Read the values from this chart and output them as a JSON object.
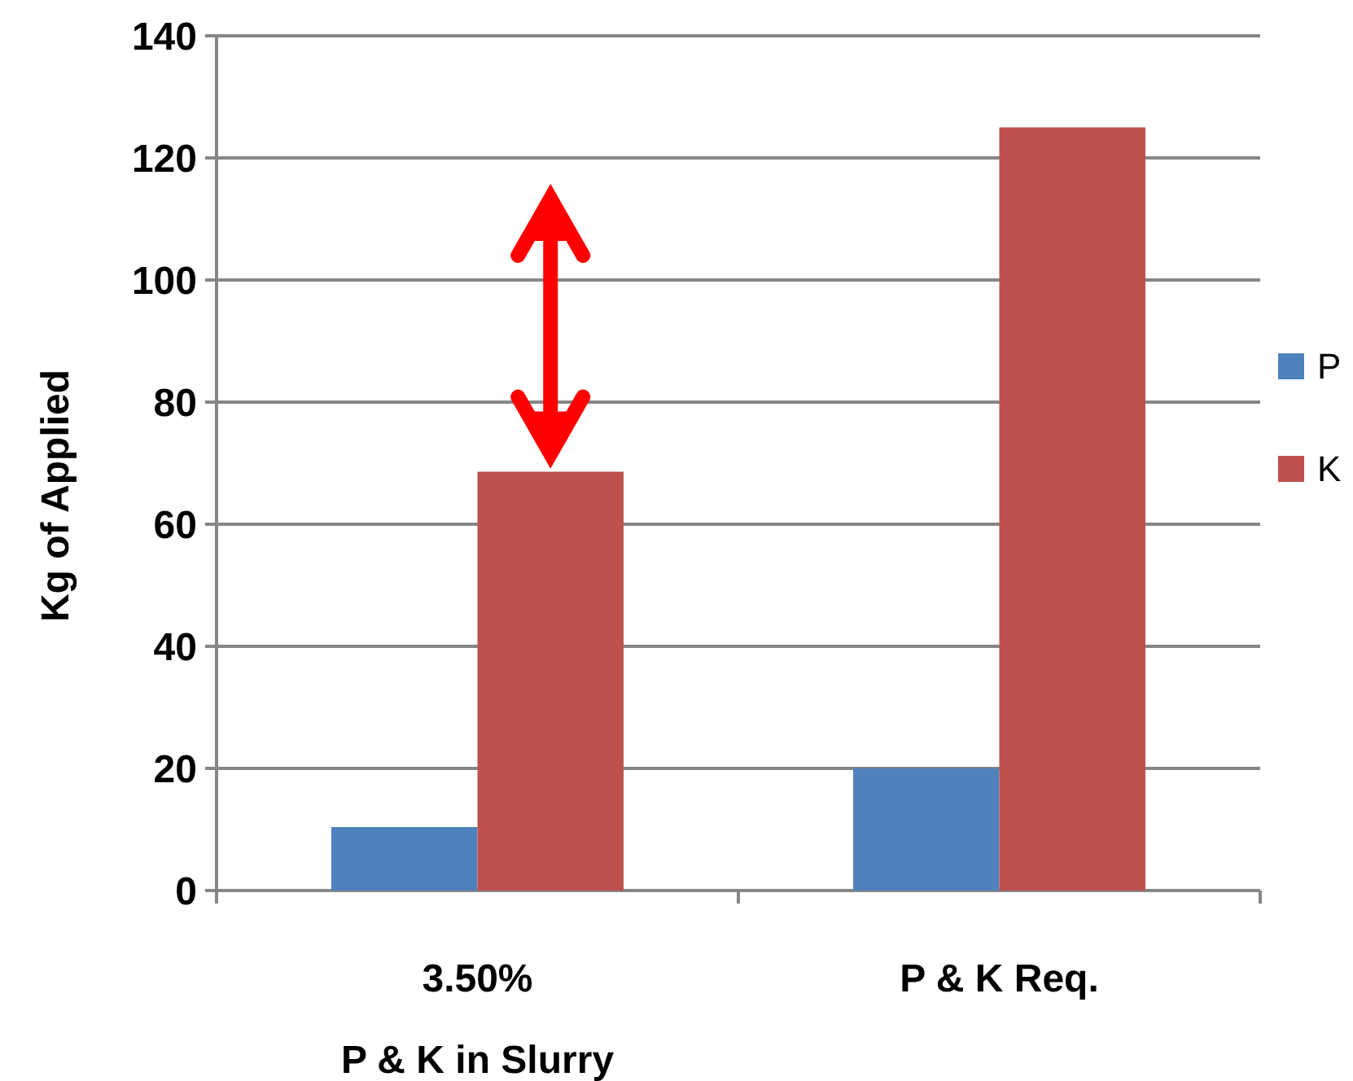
{
  "chart_data": {
    "type": "bar",
    "ylabel": "Kg of Applied",
    "categories": [
      "3.50%\nP & K in Slurry",
      "P & K Req."
    ],
    "series": [
      {
        "name": "P",
        "color": "#4f81bd",
        "values": [
          10.4,
          20
        ]
      },
      {
        "name": "K",
        "color": "#c0504d",
        "values": [
          68.6,
          125
        ]
      }
    ],
    "ylim": [
      0,
      140
    ],
    "yticks": [
      0,
      20,
      40,
      60,
      80,
      100,
      120,
      140
    ],
    "grid": "y",
    "legend": "right"
  }
}
